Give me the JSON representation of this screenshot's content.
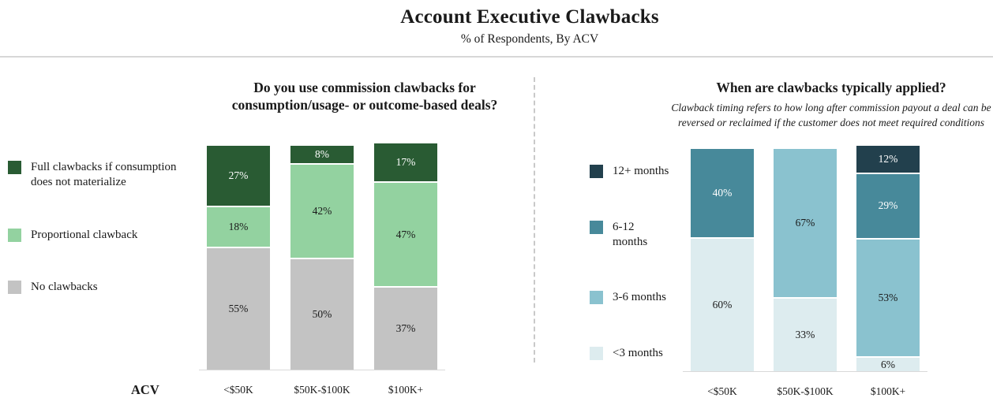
{
  "header": {
    "title": "Account Executive Clawbacks",
    "subtitle": "% of Respondents, By ACV"
  },
  "chart_data": [
    {
      "type": "bar",
      "stacked": true,
      "title": "Do you use commission clawbacks for consumption/usage- or outcome-based deals?",
      "categories": [
        "<$50K",
        "$50K-$100K",
        "$100K+"
      ],
      "series": [
        {
          "name": "Full clawbacks if consumption does not materialize",
          "color": "#295b33",
          "label_color": "#ffffff",
          "values": [
            27,
            8,
            17
          ]
        },
        {
          "name": "Proportional clawback",
          "color": "#93d2a0",
          "label_color": "#1a1a1a",
          "values": [
            18,
            42,
            47
          ]
        },
        {
          "name": "No clawbacks",
          "color": "#c3c3c3",
          "label_color": "#1a1a1a",
          "values": [
            55,
            50,
            37
          ]
        }
      ],
      "xlabel": "ACV",
      "ylim": [
        0,
        100
      ],
      "legend_position": "left",
      "value_suffix": "%",
      "grid": false
    },
    {
      "type": "bar",
      "stacked": true,
      "title": "When are clawbacks typically applied?",
      "subtitle": "Clawback timing refers to how long after commission payout a deal can be reversed or reclaimed if the customer does not meet required conditions",
      "categories": [
        "<$50K",
        "$50K-$100K",
        "$100K+"
      ],
      "series": [
        {
          "name": "12+ months",
          "color": "#22404d",
          "label_color": "#ffffff",
          "values": [
            0,
            0,
            12
          ]
        },
        {
          "name": "6-12 months",
          "color": "#47899a",
          "label_color": "#ffffff",
          "values": [
            40,
            0,
            29
          ]
        },
        {
          "name": "3-6 months",
          "color": "#8ac2cf",
          "label_color": "#1a1a1a",
          "values": [
            0,
            67,
            53
          ]
        },
        {
          "name": "<3 months",
          "color": "#ddecef",
          "label_color": "#1a1a1a",
          "values": [
            60,
            33,
            6
          ]
        }
      ],
      "xlabel": "",
      "ylim": [
        0,
        100
      ],
      "legend_position": "left",
      "value_suffix": "%",
      "grid": false
    }
  ]
}
